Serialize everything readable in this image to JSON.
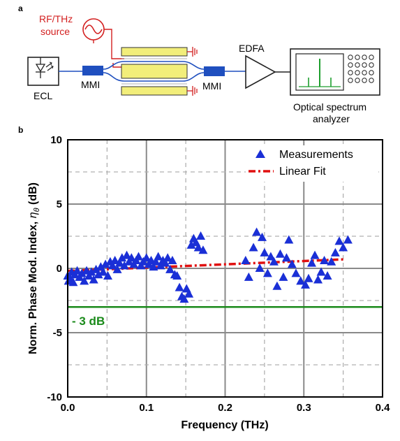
{
  "panel_a": {
    "label": "a",
    "source_label_line1": "RF/THz",
    "source_label_line2": "source",
    "ecl_label": "ECL",
    "mmi_left_label": "MMI",
    "mmi_right_label": "MMI",
    "edfa_label": "EDFA",
    "osa_label_line1": "Optical spectrum",
    "osa_label_line2": "analyzer",
    "colors": {
      "source": "#d32020",
      "mmi": "#1f4fbf",
      "modulator": "#f2ee7a",
      "spectrum": "#1e9e2e"
    }
  },
  "panel_b": {
    "label": "b"
  },
  "chart_data": {
    "type": "scatter",
    "xlabel": "Frequency (THz)",
    "ylabel": "Norm. Phase Mod. Index, ηθ (dB)",
    "ylabel_main": "Norm. Phase Mod. Index, ",
    "ylabel_symbol": "η",
    "ylabel_sub": "θ",
    "ylabel_unit": " (dB)",
    "xlim": [
      0.0,
      0.4
    ],
    "ylim": [
      -10,
      10
    ],
    "xticks": [
      0.0,
      0.1,
      0.2,
      0.3,
      0.4
    ],
    "xtick_labels": [
      "0.0",
      "0.1",
      "0.2",
      "0.3",
      "0.4"
    ],
    "yticks": [
      -10,
      -5,
      0,
      5,
      10
    ],
    "ytick_labels": [
      "-10",
      "-5",
      "0",
      "5",
      "10"
    ],
    "grid": true,
    "legend_position": "top-right",
    "legend": [
      "Measurements",
      "Linear Fit"
    ],
    "series": [
      {
        "name": "Measurements",
        "marker": "triangle",
        "color": "#1a2fd6",
        "points": [
          [
            0.0,
            -0.6
          ],
          [
            0.001,
            -1.0
          ],
          [
            0.003,
            -0.8
          ],
          [
            0.005,
            -0.3
          ],
          [
            0.007,
            -1.1
          ],
          [
            0.009,
            -0.5
          ],
          [
            0.012,
            -0.2
          ],
          [
            0.015,
            -0.7
          ],
          [
            0.018,
            -0.4
          ],
          [
            0.021,
            -1.0
          ],
          [
            0.024,
            -0.2
          ],
          [
            0.027,
            -0.6
          ],
          [
            0.03,
            -0.3
          ],
          [
            0.033,
            -0.9
          ],
          [
            0.036,
            -0.1
          ],
          [
            0.039,
            -0.5
          ],
          [
            0.042,
            0.1
          ],
          [
            0.045,
            -0.3
          ],
          [
            0.048,
            0.3
          ],
          [
            0.051,
            -0.6
          ],
          [
            0.054,
            0.5
          ],
          [
            0.057,
            0.2
          ],
          [
            0.06,
            0.6
          ],
          [
            0.063,
            -0.1
          ],
          [
            0.066,
            0.4
          ],
          [
            0.069,
            0.8
          ],
          [
            0.072,
            0.2
          ],
          [
            0.075,
            1.0
          ],
          [
            0.078,
            0.5
          ],
          [
            0.081,
            0.8
          ],
          [
            0.084,
            0.3
          ],
          [
            0.087,
            0.6
          ],
          [
            0.09,
            0.9
          ],
          [
            0.093,
            0.2
          ],
          [
            0.096,
            0.5
          ],
          [
            0.1,
            0.8
          ],
          [
            0.103,
            0.3
          ],
          [
            0.106,
            0.6
          ],
          [
            0.109,
            0.1
          ],
          [
            0.112,
            0.5
          ],
          [
            0.115,
            0.9
          ],
          [
            0.118,
            0.2
          ],
          [
            0.121,
            0.6
          ],
          [
            0.124,
            0.4
          ],
          [
            0.127,
            0.8
          ],
          [
            0.13,
            -0.1
          ],
          [
            0.133,
            0.6
          ],
          [
            0.136,
            -0.5
          ],
          [
            0.139,
            -0.6
          ],
          [
            0.142,
            -1.5
          ],
          [
            0.145,
            -2.2
          ],
          [
            0.148,
            -2.4
          ],
          [
            0.151,
            -1.6
          ],
          [
            0.154,
            -2.0
          ],
          [
            0.157,
            1.8
          ],
          [
            0.16,
            2.3
          ],
          [
            0.163,
            2.0
          ],
          [
            0.166,
            1.6
          ],
          [
            0.169,
            2.5
          ],
          [
            0.172,
            1.4
          ],
          [
            0.226,
            0.6
          ],
          [
            0.23,
            -0.7
          ],
          [
            0.236,
            1.6
          ],
          [
            0.24,
            2.8
          ],
          [
            0.244,
            0.0
          ],
          [
            0.247,
            2.4
          ],
          [
            0.25,
            1.2
          ],
          [
            0.254,
            -0.4
          ],
          [
            0.258,
            0.9
          ],
          [
            0.262,
            0.5
          ],
          [
            0.266,
            -1.4
          ],
          [
            0.27,
            1.1
          ],
          [
            0.274,
            -0.7
          ],
          [
            0.278,
            0.8
          ],
          [
            0.281,
            2.2
          ],
          [
            0.285,
            0.3
          ],
          [
            0.29,
            -0.4
          ],
          [
            0.296,
            -1.0
          ],
          [
            0.302,
            -1.3
          ],
          [
            0.306,
            -0.8
          ],
          [
            0.31,
            0.4
          ],
          [
            0.314,
            1.0
          ],
          [
            0.318,
            -0.9
          ],
          [
            0.322,
            -0.3
          ],
          [
            0.326,
            0.6
          ],
          [
            0.33,
            -0.6
          ],
          [
            0.335,
            0.5
          ],
          [
            0.34,
            1.2
          ],
          [
            0.345,
            2.1
          ],
          [
            0.35,
            1.6
          ],
          [
            0.356,
            2.2
          ]
        ]
      },
      {
        "name": "Linear Fit",
        "style": "dash-dot",
        "color": "#e01010",
        "points": [
          [
            0.0,
            -0.2
          ],
          [
            0.35,
            0.7
          ]
        ]
      }
    ],
    "annotations": [
      {
        "text": "- 3 dB",
        "y": -3,
        "color": "#1a8a1a"
      }
    ]
  }
}
